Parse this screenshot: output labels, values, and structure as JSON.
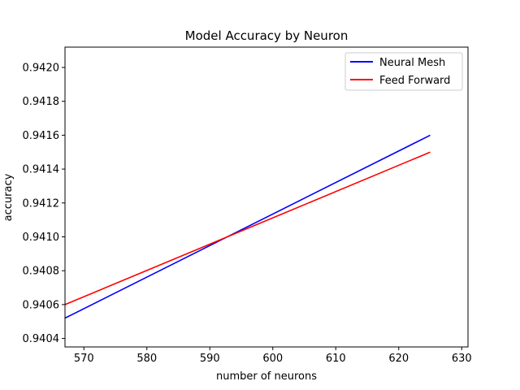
{
  "chart_data": {
    "type": "line",
    "title": "Model Accuracy by Neuron",
    "xlabel": "number of neurons",
    "ylabel": "accuracy",
    "xlim": [
      567,
      631
    ],
    "ylim": [
      0.94035,
      0.94212
    ],
    "x_ticks": [
      570,
      580,
      590,
      600,
      610,
      620,
      630
    ],
    "x_tick_labels": [
      "570",
      "580",
      "590",
      "600",
      "610",
      "620",
      "630"
    ],
    "y_ticks": [
      0.9404,
      0.9406,
      0.9408,
      0.941,
      0.9412,
      0.9414,
      0.9416,
      0.9418,
      0.942
    ],
    "y_tick_labels": [
      "0.9404",
      "0.9406",
      "0.9408",
      "0.9410",
      "0.9412",
      "0.9414",
      "0.9416",
      "0.9418",
      "0.9420"
    ],
    "grid": false,
    "legend_position": "top-right",
    "series": [
      {
        "name": "Neural Mesh",
        "color": "#0000ff",
        "x": [
          567,
          625
        ],
        "y": [
          0.94052,
          0.9416
        ]
      },
      {
        "name": "Feed Forward",
        "color": "#ff0000",
        "x": [
          567,
          625
        ],
        "y": [
          0.9406,
          0.9415
        ]
      }
    ]
  }
}
